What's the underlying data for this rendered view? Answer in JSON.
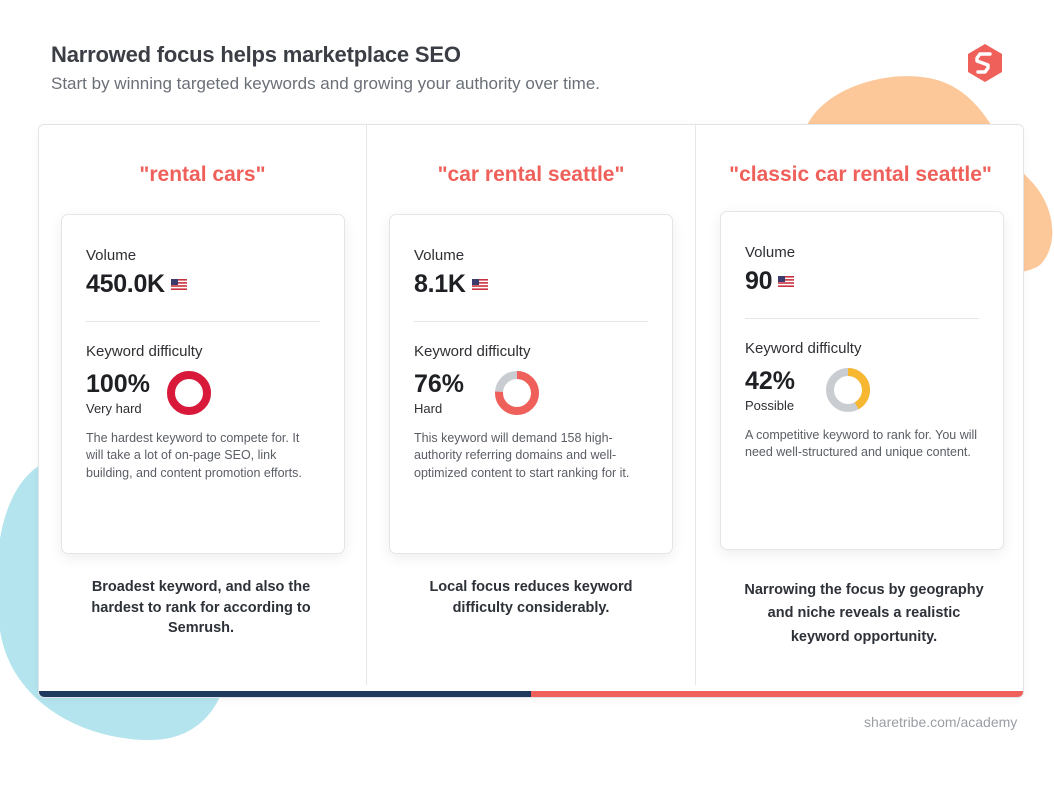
{
  "header": {
    "title": "Narrowed focus helps marketplace SEO",
    "subtitle": "Start by winning targeted keywords and growing your authority over time."
  },
  "colors": {
    "accent": "#f0605a",
    "navy": "#1f3a5c",
    "blob_orange": "#fcc89a",
    "blob_blue": "#b4e4ee",
    "difficulty_very_hard": "#d9193a",
    "difficulty_hard": "#f0605a",
    "difficulty_possible": "#f7b731",
    "donut_track": "#c9ccd1"
  },
  "logo": {
    "icon": "sharetribe-logo-icon"
  },
  "columns": [
    {
      "keyword": "\"rental cars\"",
      "volume_label": "Volume",
      "volume": "450.0K",
      "flag_icon": "us-flag-icon",
      "difficulty_label": "Keyword difficulty",
      "difficulty_pct": "100%",
      "difficulty_value": 100,
      "difficulty_level": "Very hard",
      "difficulty_color": "#d9193a",
      "description": "The hardest keyword to compete for. It will take a lot of on-page SEO, link building, and content promotion efforts.",
      "caption": "Broadest keyword, and also the hardest to rank for according to Semrush."
    },
    {
      "keyword": "\"car rental seattle\"",
      "volume_label": "Volume",
      "volume": "8.1K",
      "flag_icon": "us-flag-icon",
      "difficulty_label": "Keyword difficulty",
      "difficulty_pct": "76%",
      "difficulty_value": 76,
      "difficulty_level": "Hard",
      "difficulty_color": "#f0605a",
      "description": "This keyword will demand 158 high-authority referring domains and well-optimized content to start ranking for it.",
      "caption": "Local focus reduces keyword difficulty considerably."
    },
    {
      "keyword": "\"classic car rental seattle\"",
      "volume_label": "Volume",
      "volume": "90",
      "flag_icon": "us-flag-icon",
      "difficulty_label": "Keyword difficulty",
      "difficulty_pct": "42%",
      "difficulty_value": 42,
      "difficulty_level": "Possible",
      "difficulty_color": "#f7b731",
      "description": "A competitive keyword to rank for. You will need well-structured and unique content.",
      "caption": "Narrowing the focus by geography and niche reveals a realistic keyword opportunity."
    }
  ],
  "footer": {
    "source": "sharetribe.com/academy"
  }
}
